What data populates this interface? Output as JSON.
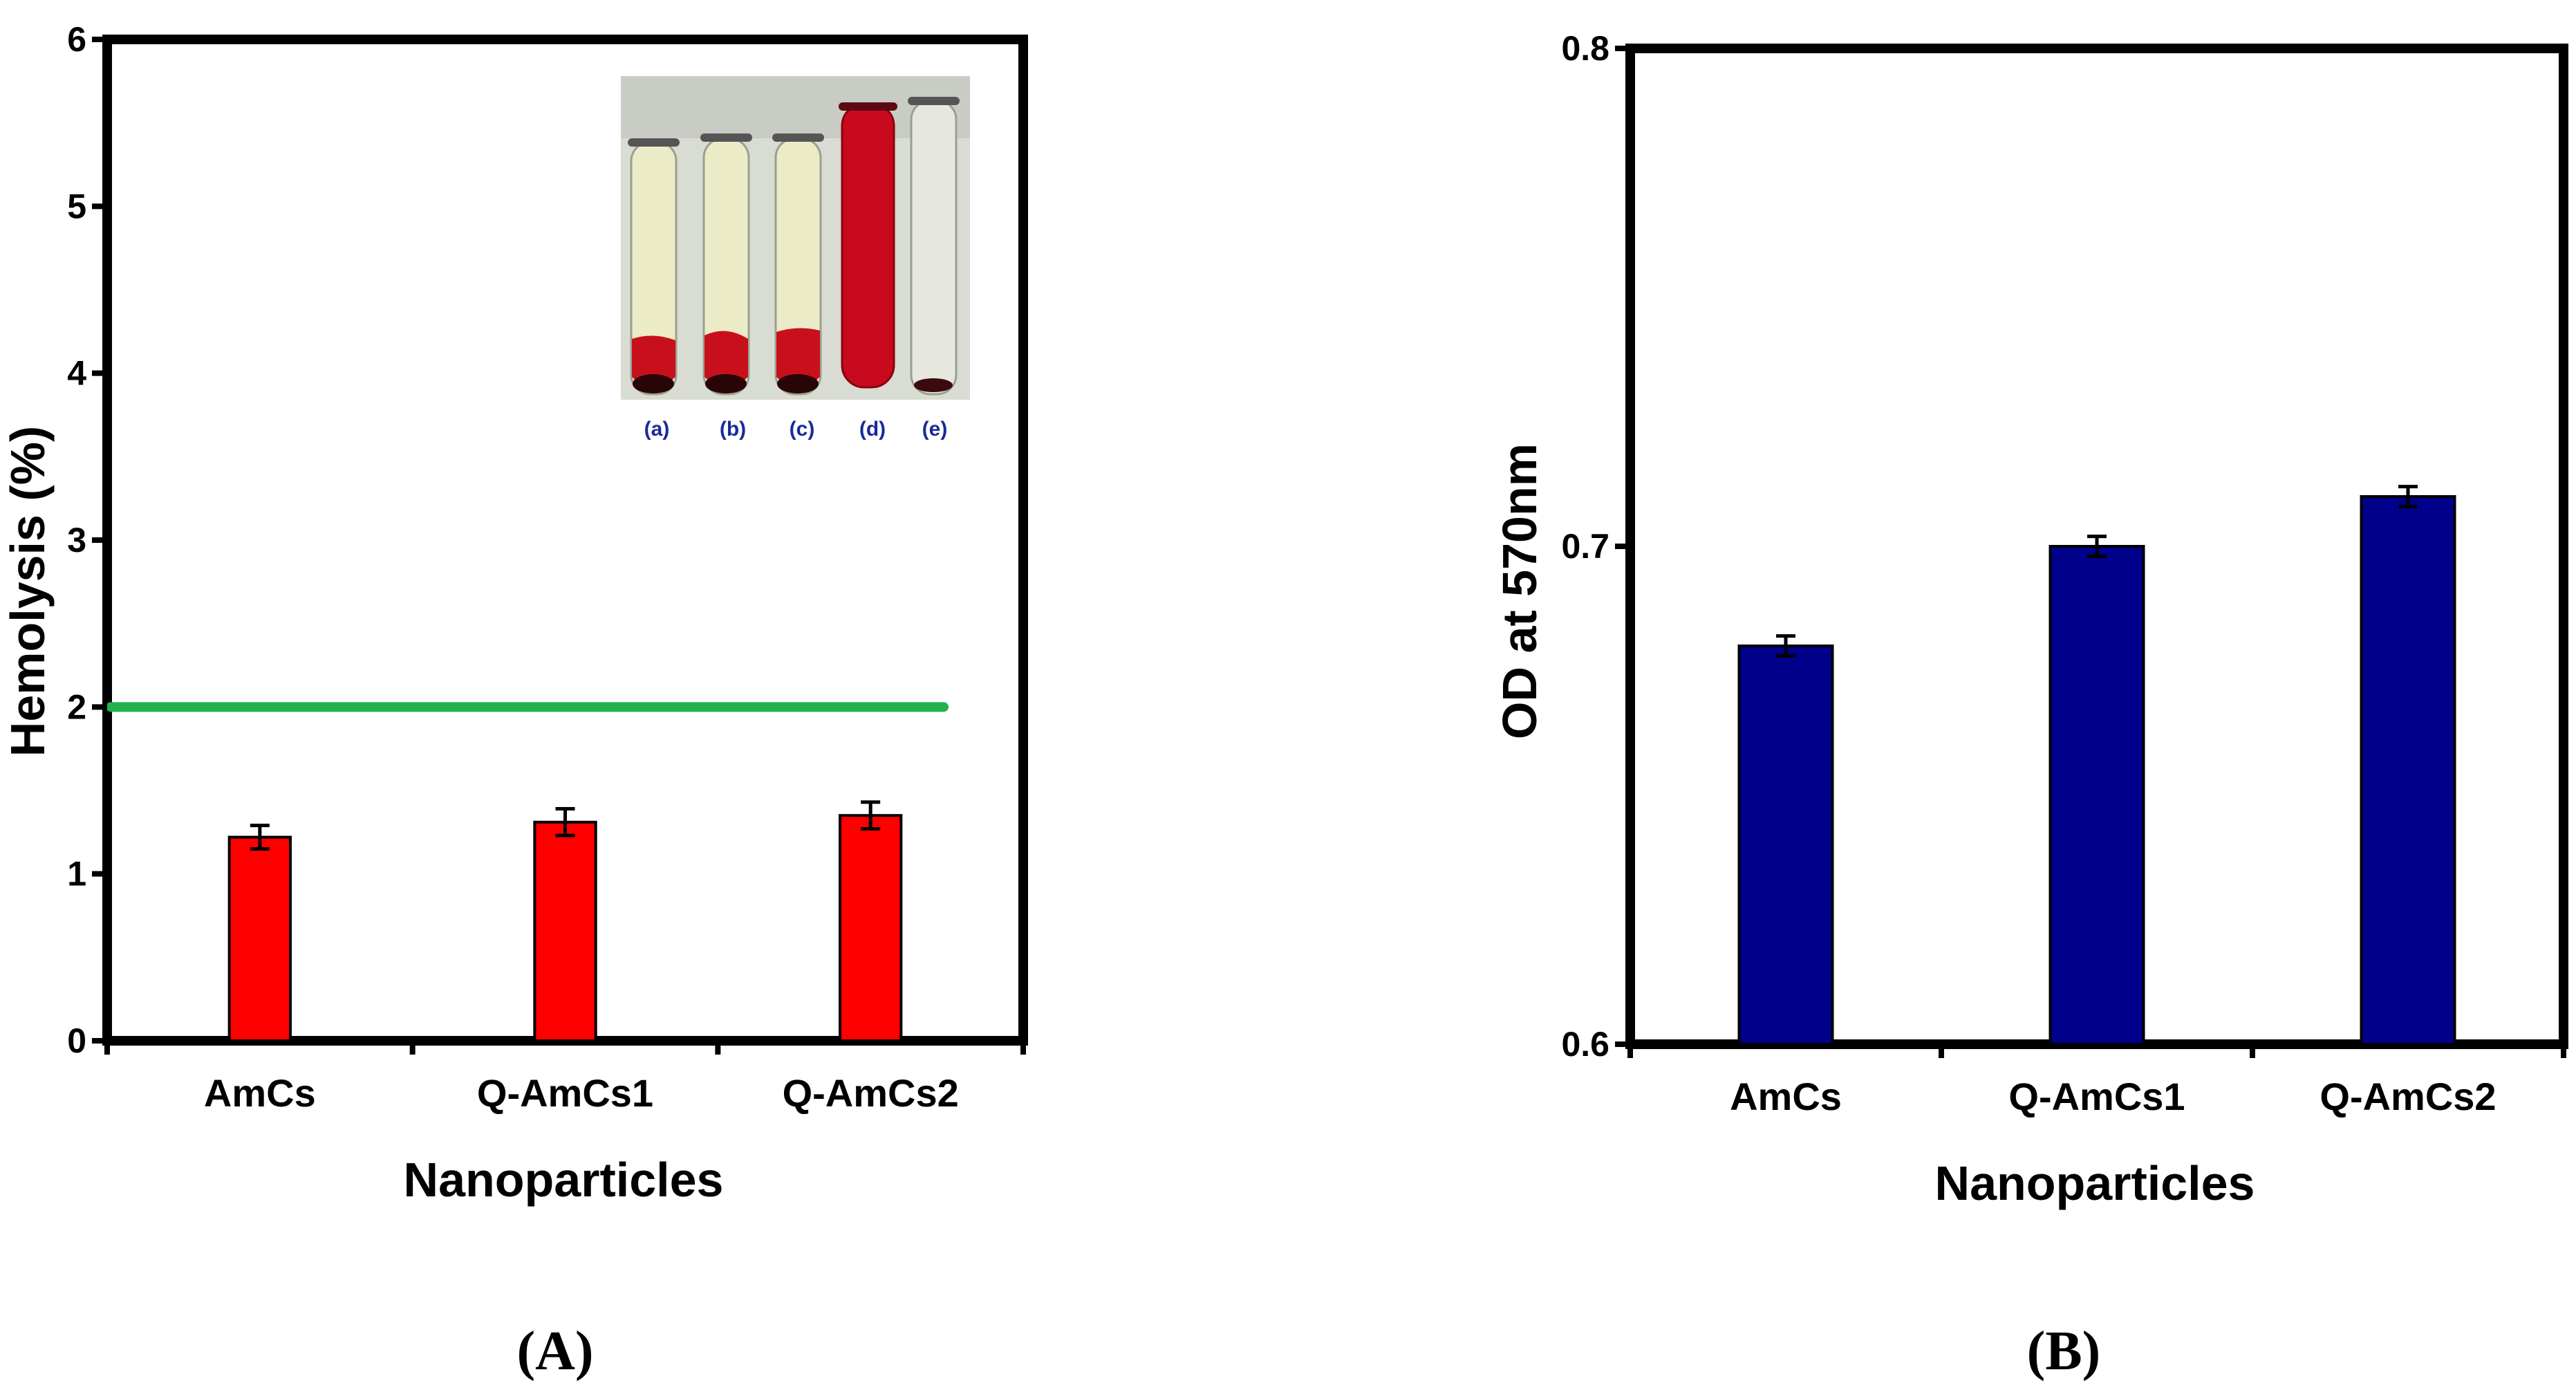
{
  "chart_data": [
    {
      "panel": "(A)",
      "type": "bar",
      "categories": [
        "AmCs",
        "Q-AmCs1",
        "Q-AmCs2"
      ],
      "values": [
        1.22,
        1.31,
        1.35
      ],
      "errors": [
        0.07,
        0.08,
        0.08
      ],
      "xlabel": "Nanoparticles",
      "ylabel": "Hemolysis (%)",
      "ylim": [
        0,
        6
      ],
      "yticks": [
        "0",
        "1",
        "2",
        "3",
        "4",
        "5",
        "6"
      ],
      "bar_color": "#ff0000",
      "reference_line": {
        "y": 2,
        "color": "#22b14c"
      },
      "inset": {
        "description_labels": [
          "(a)",
          "(b)",
          "(c)",
          "(d)",
          "(e)"
        ]
      },
      "grid": false,
      "legend": "none"
    },
    {
      "panel": "(B)",
      "type": "bar",
      "categories": [
        "AmCs",
        "Q-AmCs1",
        "Q-AmCs2"
      ],
      "values": [
        0.68,
        0.7,
        0.71
      ],
      "errors": [
        0.002,
        0.002,
        0.002
      ],
      "xlabel": "Nanoparticles",
      "ylabel": "OD at 570nm",
      "ylim": [
        0.6,
        0.8
      ],
      "yticks": [
        "0.6",
        "0.7",
        "0.8"
      ],
      "bar_color": "#00008b",
      "grid": false,
      "legend": "none"
    }
  ]
}
